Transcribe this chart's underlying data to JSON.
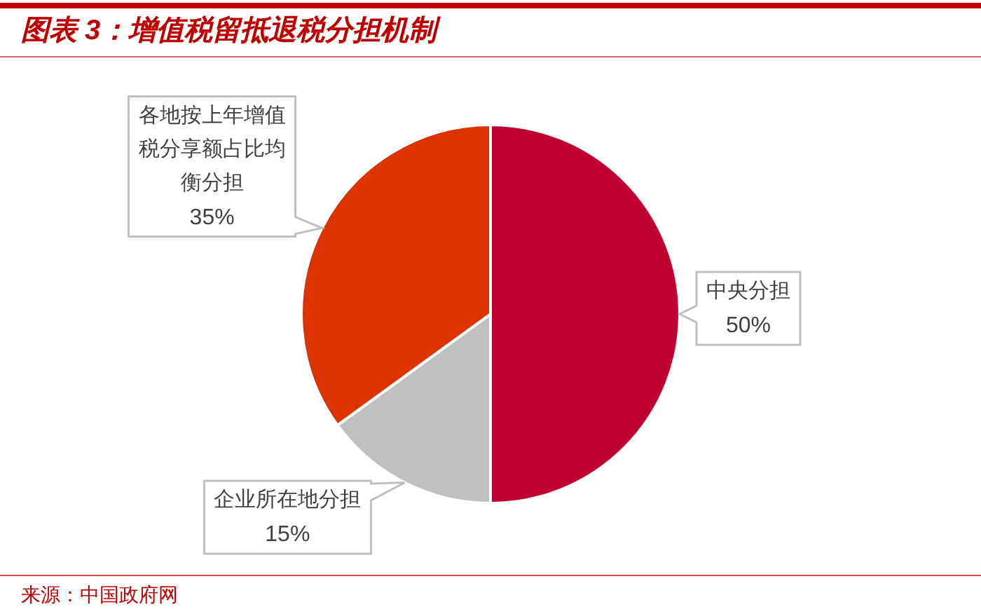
{
  "chart_data": {
    "type": "pie",
    "title": "图表 3：增值税留抵退税分担机制",
    "categories": [
      "中央分担",
      "企业所在地分担",
      "各地按上年增值税分享额占比均衡分担"
    ],
    "values": [
      50,
      15,
      35
    ],
    "colors": [
      "#be0030",
      "#c0c0c0",
      "#dc3300"
    ],
    "value_labels": [
      "50%",
      "15%",
      "35%"
    ],
    "annotations": [
      "来源：中国政府网"
    ]
  }
}
